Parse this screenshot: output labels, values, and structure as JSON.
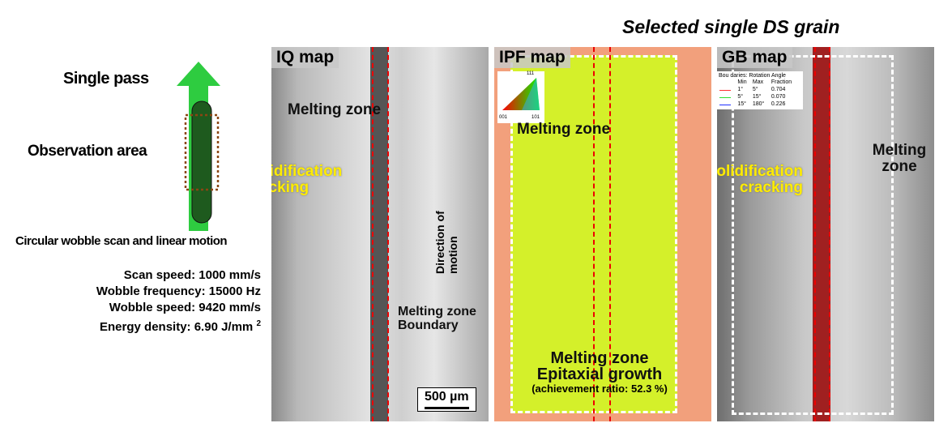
{
  "schematic": {
    "single_pass": "Single pass",
    "observation_area": "Observation area",
    "caption": "Circular wobble scan and linear motion",
    "params": [
      "Scan speed: 1000 mm/s",
      "Wobble frequency: 15000 Hz",
      "Wobble speed: 9420 mm/s",
      "Energy density: 6.90 J/mm"
    ],
    "superscript": "2",
    "colors": {
      "arrow": "#2ecc40",
      "track": "#1e5a1e",
      "box": "#8b4513"
    }
  },
  "top_label": "Selected single DS grain",
  "iq_map": {
    "title": "IQ map",
    "melting_zone": "Melting zone",
    "solidification_cracking": "Solidification cracking",
    "direction": "Direction of motion",
    "boundary": "Melting zone Boundary",
    "scale_bar": "500 µm"
  },
  "ipf_map": {
    "title": "IPF map",
    "melting_zone": "Melting zone",
    "legend_labels": [
      "111",
      "001",
      "101"
    ],
    "epitaxial_1": "Melting zone",
    "epitaxial_2": "Epitaxial growth",
    "achievement": "(achievement ratio: 52.3 %)",
    "colors": {
      "grain": "#d4f02a",
      "matrix": "#f2a07c"
    }
  },
  "gb_map": {
    "title": "GB map",
    "legend_title": "Bou   daries: Rotation Angle",
    "legend_headers": [
      "Min",
      "Max",
      "Fraction"
    ],
    "legend_rows": [
      {
        "color": "#ff3030",
        "min": "1°",
        "max": "5°",
        "fraction": "0.704"
      },
      {
        "color": "#30e030",
        "min": "5°",
        "max": "15°",
        "fraction": "0.070"
      },
      {
        "color": "#2030ff",
        "min": "15°",
        "max": "180°",
        "fraction": "0.226"
      }
    ],
    "solidification_cracking": "Solidification cracking",
    "melting_zone": "Melting zone"
  }
}
